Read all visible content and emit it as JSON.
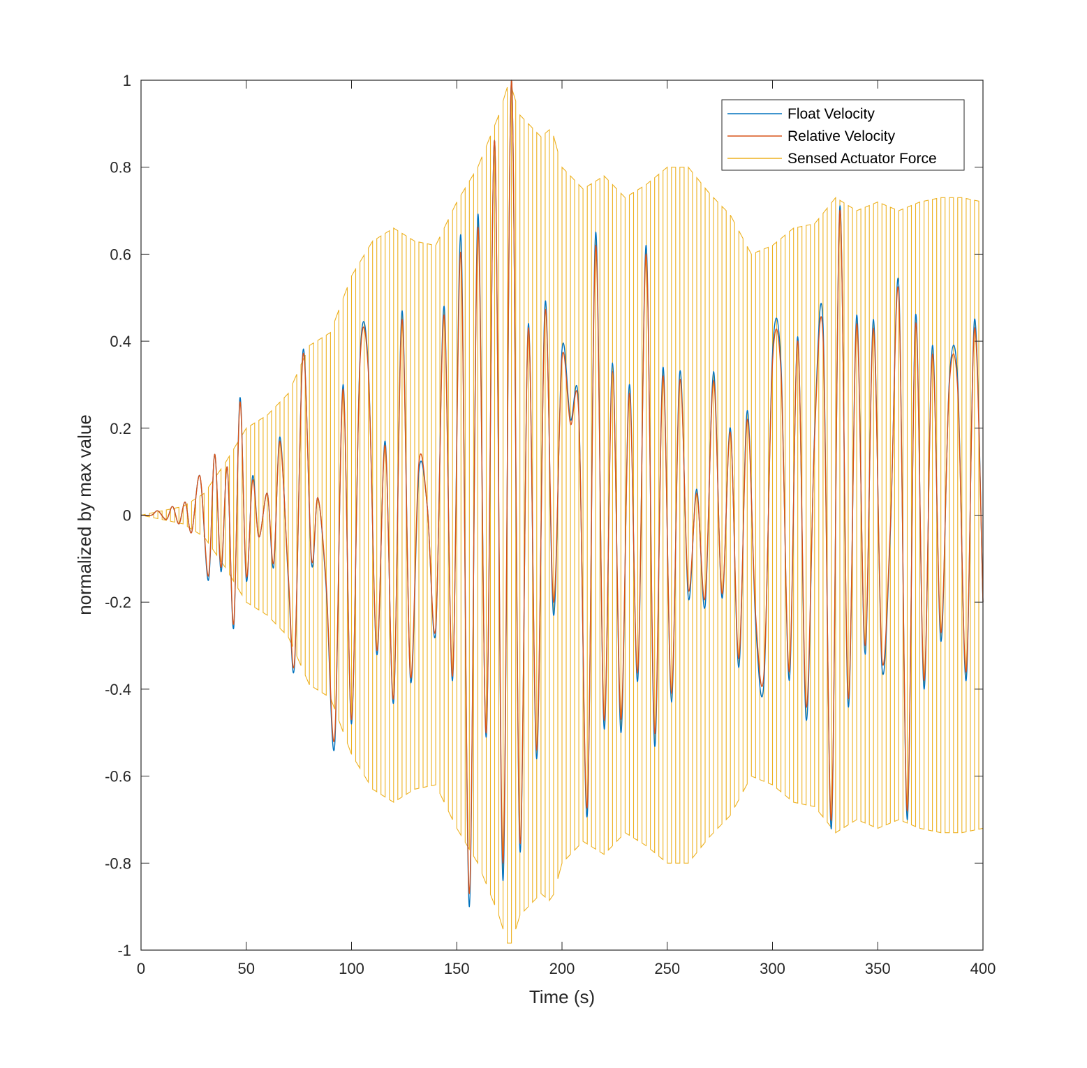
{
  "chart_data": {
    "type": "line",
    "title": "",
    "xlabel": "Time (s)",
    "ylabel": "normalized by max value",
    "xlim": [
      0,
      400
    ],
    "ylim": [
      -1,
      1
    ],
    "xticks": [
      0,
      50,
      100,
      150,
      200,
      250,
      300,
      350,
      400
    ],
    "yticks": [
      -1,
      -0.8,
      -0.6,
      -0.4,
      -0.2,
      0,
      0.2,
      0.4,
      0.6,
      0.8,
      1
    ],
    "xtick_labels": [
      "0",
      "50",
      "100",
      "150",
      "200",
      "250",
      "300",
      "350",
      "400"
    ],
    "ytick_labels": [
      "-1",
      "-0.8",
      "-0.6",
      "-0.4",
      "-0.2",
      "0",
      "0.2",
      "0.4",
      "0.6",
      "0.8",
      "1"
    ],
    "grid": false,
    "legend_position": "top-right",
    "series": [
      {
        "name": "Float Velocity",
        "color": "#0072BD",
        "x": [
          0,
          5,
          8,
          12,
          15,
          18,
          21,
          24,
          28,
          32,
          35,
          38,
          41,
          44,
          47,
          50,
          53,
          56,
          60,
          63,
          66,
          70,
          73,
          77,
          81,
          84,
          88,
          92,
          96,
          100,
          104,
          108,
          112,
          116,
          120,
          124,
          128,
          132,
          136,
          140,
          144,
          148,
          152,
          156,
          160,
          164,
          168,
          172,
          176,
          180,
          184,
          188,
          192,
          196,
          200,
          204,
          208,
          212,
          216,
          220,
          224,
          228,
          232,
          236,
          240,
          244,
          248,
          252,
          256,
          260,
          264,
          268,
          272,
          276,
          280,
          284,
          288,
          292,
          296,
          300,
          304,
          308,
          312,
          316,
          320,
          324,
          328,
          332,
          336,
          340,
          344,
          348,
          352,
          356,
          360,
          364,
          368,
          372,
          376,
          380,
          384,
          388,
          392,
          396,
          400
        ],
        "y": [
          0,
          0,
          0.01,
          -0.01,
          0.02,
          -0.02,
          0.03,
          -0.04,
          0.09,
          -0.15,
          0.14,
          -0.13,
          0.11,
          -0.26,
          0.27,
          -0.15,
          0.09,
          -0.05,
          0.05,
          -0.12,
          0.18,
          -0.15,
          -0.34,
          0.38,
          -0.11,
          0.04,
          -0.17,
          -0.53,
          0.3,
          -0.48,
          0.36,
          0.34,
          -0.32,
          0.17,
          -0.43,
          0.47,
          -0.38,
          0.1,
          0.02,
          -0.27,
          0.48,
          -0.38,
          0.64,
          -0.9,
          0.69,
          -0.51,
          0.86,
          -0.84,
          1.0,
          -0.77,
          0.44,
          -0.56,
          0.49,
          -0.23,
          0.38,
          0.22,
          0.24,
          -0.69,
          0.65,
          -0.49,
          0.35,
          -0.5,
          0.3,
          -0.38,
          0.62,
          -0.53,
          0.34,
          -0.43,
          0.33,
          -0.19,
          0.06,
          -0.21,
          0.33,
          -0.19,
          0.2,
          -0.35,
          0.24,
          -0.25,
          -0.38,
          0.37,
          0.35,
          -0.38,
          0.41,
          -0.47,
          0.19,
          0.44,
          -0.72,
          0.71,
          -0.44,
          0.46,
          -0.32,
          0.45,
          -0.35,
          -0.04,
          0.53,
          -0.7,
          0.46,
          -0.4,
          0.39,
          -0.29,
          0.31,
          0.31,
          -0.38,
          0.45,
          -0.2
        ]
      },
      {
        "name": "Relative Velocity",
        "color": "#D95319",
        "x": [
          0,
          5,
          8,
          12,
          15,
          18,
          21,
          24,
          28,
          32,
          35,
          38,
          41,
          44,
          47,
          50,
          53,
          56,
          60,
          63,
          66,
          70,
          73,
          77,
          81,
          84,
          88,
          92,
          96,
          100,
          104,
          108,
          112,
          116,
          120,
          124,
          128,
          132,
          136,
          140,
          144,
          148,
          152,
          156,
          160,
          164,
          168,
          172,
          176,
          180,
          184,
          188,
          192,
          196,
          200,
          204,
          208,
          212,
          216,
          220,
          224,
          228,
          232,
          236,
          240,
          244,
          248,
          252,
          256,
          260,
          264,
          268,
          272,
          276,
          280,
          284,
          288,
          292,
          296,
          300,
          304,
          308,
          312,
          316,
          320,
          324,
          328,
          332,
          336,
          340,
          344,
          348,
          352,
          356,
          360,
          364,
          368,
          372,
          376,
          380,
          384,
          388,
          392,
          396,
          400
        ],
        "y": [
          0,
          0,
          0.01,
          -0.01,
          0.02,
          -0.02,
          0.03,
          -0.04,
          0.09,
          -0.14,
          0.14,
          -0.12,
          0.11,
          -0.25,
          0.26,
          -0.14,
          0.08,
          -0.05,
          0.05,
          -0.11,
          0.17,
          -0.14,
          -0.33,
          0.37,
          -0.1,
          0.04,
          -0.16,
          -0.51,
          0.29,
          -0.47,
          0.35,
          0.33,
          -0.31,
          0.16,
          -0.42,
          0.45,
          -0.37,
          0.12,
          0.02,
          -0.26,
          0.46,
          -0.37,
          0.6,
          -0.87,
          0.66,
          -0.5,
          0.86,
          -0.8,
          1.0,
          -0.75,
          0.43,
          -0.54,
          0.47,
          -0.2,
          0.36,
          0.21,
          0.23,
          -0.67,
          0.62,
          -0.47,
          0.33,
          -0.47,
          0.28,
          -0.36,
          0.6,
          -0.5,
          0.32,
          -0.41,
          0.31,
          -0.17,
          0.05,
          -0.19,
          0.31,
          -0.18,
          0.19,
          -0.33,
          0.22,
          -0.23,
          -0.36,
          0.35,
          0.33,
          -0.36,
          0.4,
          -0.44,
          0.18,
          0.41,
          -0.7,
          0.7,
          -0.42,
          0.44,
          -0.3,
          0.43,
          -0.33,
          -0.03,
          0.51,
          -0.68,
          0.44,
          -0.38,
          0.37,
          -0.27,
          0.3,
          0.29,
          -0.36,
          0.43,
          -0.2
        ]
      },
      {
        "name": "Sensed Actuator Force",
        "color": "#EDB120",
        "envelope_x": [
          0,
          10,
          20,
          30,
          40,
          50,
          60,
          70,
          80,
          90,
          100,
          110,
          120,
          130,
          140,
          150,
          160,
          170,
          175,
          180,
          190,
          195,
          200,
          210,
          220,
          230,
          240,
          250,
          260,
          270,
          280,
          290,
          300,
          310,
          320,
          330,
          340,
          350,
          360,
          370,
          380,
          390,
          400
        ],
        "envelope_y": [
          0,
          0.01,
          0.02,
          0.05,
          0.12,
          0.2,
          0.23,
          0.28,
          0.39,
          0.42,
          0.55,
          0.63,
          0.66,
          0.63,
          0.62,
          0.72,
          0.8,
          0.92,
          1.0,
          0.92,
          0.87,
          0.89,
          0.8,
          0.75,
          0.78,
          0.73,
          0.76,
          0.8,
          0.8,
          0.74,
          0.69,
          0.6,
          0.62,
          0.66,
          0.67,
          0.73,
          0.7,
          0.72,
          0.7,
          0.72,
          0.73,
          0.73,
          0.72
        ]
      }
    ]
  },
  "legend": {
    "items": [
      "Float Velocity",
      "Relative Velocity",
      "Sensed Actuator Force"
    ]
  }
}
